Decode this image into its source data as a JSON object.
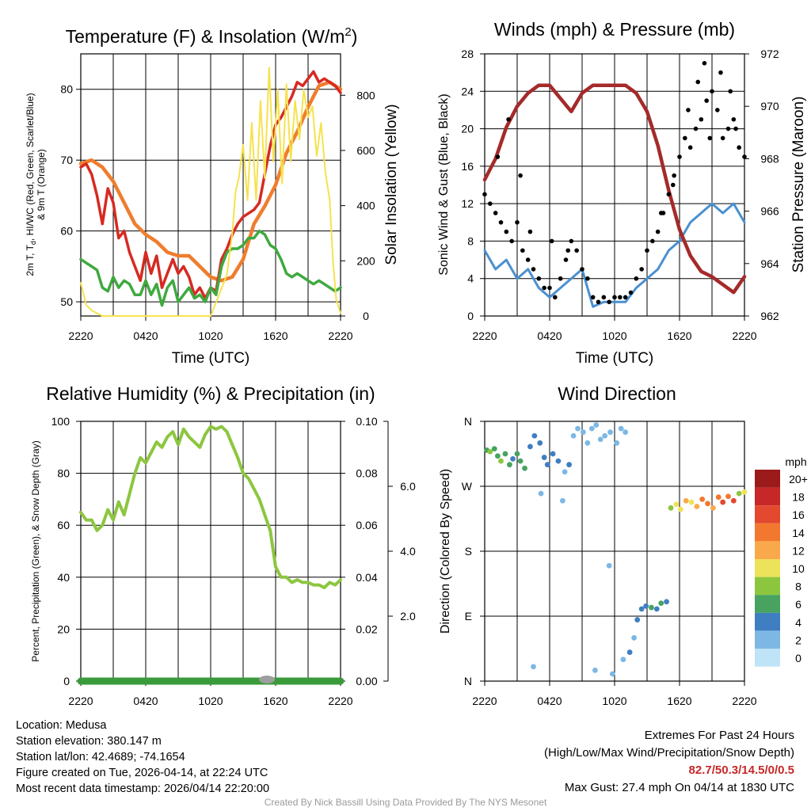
{
  "chart_data": [
    {
      "id": "temp",
      "type": "line",
      "title": "Temperature (F) & Insolation (W/m",
      "title_sup": "2",
      "title_end": ")",
      "xlabel": "Time (UTC)",
      "ylabel_left": [
        "2m T, T",
        "d",
        ", HI/WC (Red, Green, Scarlet/Blue)",
        "& 9m T (Orange)"
      ],
      "ylabel_right": "Solar Insolation (Yellow)",
      "ylim": [
        48,
        85
      ],
      "y2lim": [
        0,
        950
      ],
      "yticks": [
        50,
        60,
        70,
        80
      ],
      "y2ticks": [
        0,
        200,
        400,
        600,
        800
      ],
      "xticks": [
        "2220",
        "0420",
        "1020",
        "1620",
        "2220"
      ],
      "series": [
        {
          "name": "9m T",
          "color": "#ef7d2e",
          "width": 4.5,
          "axis": "left",
          "x": [
            0,
            1,
            2,
            3,
            4,
            5,
            6,
            7,
            8,
            9,
            10,
            11,
            12,
            13,
            14,
            15,
            16,
            17,
            18,
            19,
            20,
            21,
            22,
            23,
            24
          ],
          "values": [
            69.5,
            70,
            69,
            67,
            64,
            61,
            59.5,
            58.5,
            57,
            56.5,
            56.5,
            55,
            53.5,
            53,
            53.5,
            56,
            61,
            63.5,
            66.5,
            71,
            74,
            77.5,
            80.5,
            81,
            80
          ]
        },
        {
          "name": "2m T",
          "color": "#d62a22",
          "width": 3.5,
          "axis": "left",
          "x": [
            0,
            0.5,
            1,
            1.5,
            2,
            2.5,
            3,
            3.5,
            4,
            4.5,
            5,
            5.5,
            6,
            6.5,
            7,
            7.5,
            8,
            8.5,
            9,
            9.5,
            10,
            10.5,
            11,
            11.5,
            12,
            12.5,
            13,
            13.5,
            14,
            14.5,
            15,
            15.5,
            16,
            16.5,
            17,
            17.5,
            18,
            18.5,
            19,
            19.5,
            20,
            20.5,
            21,
            21.5,
            22,
            22.5,
            23,
            23.5,
            24
          ],
          "values": [
            69,
            69.5,
            68,
            65,
            61,
            66,
            64,
            59,
            60,
            57,
            55,
            53,
            57,
            54,
            56.5,
            52,
            54,
            56,
            54,
            55,
            53.5,
            51,
            52,
            50.5,
            52,
            51.5,
            56,
            57.5,
            59.5,
            61,
            62,
            62.5,
            63,
            64,
            68,
            72,
            75,
            76,
            77.5,
            79,
            81,
            80.5,
            81.5,
            82.5,
            81,
            81.5,
            81,
            80.5,
            79.5
          ]
        },
        {
          "name": "HI/WC",
          "color": "#3fa93f",
          "width": 3.5,
          "axis": "left",
          "x": [
            0,
            0.5,
            1,
            1.5,
            2,
            2.5,
            3,
            3.5,
            4,
            4.5,
            5,
            5.5,
            6,
            6.5,
            7,
            7.5,
            8,
            8.5,
            9,
            9.5,
            10,
            10.5,
            11,
            11.5,
            12,
            12.5,
            13,
            13.5,
            14,
            14.5,
            15,
            15.5,
            16,
            16.5,
            17,
            17.5,
            18,
            18.5,
            19,
            19.5,
            20,
            20.5,
            21,
            21.5,
            22,
            22.5,
            23,
            23.5,
            24
          ],
          "values": [
            56,
            55.5,
            55,
            54.5,
            52,
            51.5,
            53.5,
            52,
            53,
            52.5,
            51,
            51,
            53,
            51,
            52.5,
            49.5,
            52,
            53,
            50,
            51,
            52,
            50.5,
            51,
            50,
            52,
            51,
            55,
            57,
            57.5,
            57.5,
            58,
            59,
            59,
            60,
            59.5,
            58,
            57.5,
            56,
            54,
            53.5,
            54,
            53.5,
            53,
            52.5,
            53,
            52.5,
            52,
            51.5,
            52
          ]
        },
        {
          "name": "Insolation",
          "color": "#f6e24e",
          "width": 2,
          "axis": "right",
          "x": [
            0,
            0.5,
            1,
            2,
            3,
            4,
            5,
            6,
            7,
            8,
            9,
            10,
            11,
            12,
            13,
            13.5,
            14,
            14.3,
            14.6,
            15,
            15.4,
            15.8,
            16.2,
            16.6,
            17,
            17.4,
            17.8,
            18.2,
            18.6,
            19,
            19.4,
            19.8,
            20.2,
            20.6,
            21,
            21.4,
            21.8,
            22.2,
            22.6,
            23,
            23.3,
            23.6,
            24
          ],
          "values": [
            120,
            40,
            20,
            0,
            0,
            0,
            0,
            0,
            0,
            0,
            0,
            0,
            0,
            0,
            100,
            150,
            300,
            450,
            500,
            620,
            420,
            700,
            420,
            780,
            500,
            900,
            560,
            820,
            480,
            840,
            560,
            780,
            640,
            820,
            720,
            760,
            580,
            700,
            520,
            420,
            200,
            60,
            10
          ]
        }
      ]
    },
    {
      "id": "wind",
      "type": "line+scatter",
      "title": "Winds (mph) & Pressure (mb)",
      "xlabel": "Time (UTC)",
      "ylabel_left": "Sonic Wind & Gust (Blue, Black)",
      "ylabel_right": "Station Pressure (Maroon)",
      "ylim": [
        0,
        28
      ],
      "y2lim": [
        962,
        972
      ],
      "yticks": [
        0,
        4,
        8,
        12,
        16,
        20,
        24,
        28
      ],
      "y2ticks": [
        962,
        964,
        966,
        968,
        970,
        972
      ],
      "xticks": [
        "2220",
        "0420",
        "1020",
        "1620",
        "2220"
      ],
      "pressure": {
        "color": "#a52a2a",
        "x": [
          0,
          1,
          2,
          3,
          4,
          5,
          6,
          7,
          8,
          9,
          10,
          11,
          12,
          13,
          14,
          15,
          16,
          17,
          18,
          19,
          20,
          21,
          22,
          23,
          24
        ],
        "values": [
          967.2,
          968,
          969.2,
          970,
          970.5,
          970.8,
          970.8,
          970.3,
          969.8,
          970.5,
          970.8,
          970.8,
          970.8,
          970.8,
          970.5,
          969.8,
          968.5,
          966.8,
          965.3,
          964.3,
          963.7,
          963.5,
          963.2,
          962.9,
          963.5
        ]
      },
      "wind": {
        "color": "#4a90d0",
        "x": [
          0,
          1,
          2,
          3,
          4,
          5,
          6,
          7,
          8,
          9,
          10,
          11,
          12,
          13,
          14,
          15,
          16,
          17,
          18,
          19,
          20,
          21,
          22,
          23,
          24
        ],
        "values": [
          7,
          5,
          6,
          4,
          5,
          3,
          2,
          3,
          4,
          5,
          1,
          1.5,
          1.5,
          1.5,
          3,
          4,
          5,
          7,
          8,
          10,
          11,
          12,
          11,
          12,
          10
        ]
      },
      "gust": {
        "color": "#000000",
        "x": [
          0,
          0.5,
          1,
          1.5,
          2,
          2.5,
          3,
          3.5,
          4,
          4.5,
          5,
          5.5,
          6,
          6.5,
          7,
          7.5,
          8,
          8.5,
          9,
          9.5,
          10,
          10.5,
          11,
          11.5,
          12,
          12.5,
          13,
          13.5,
          14,
          14.5,
          15,
          15.5,
          16,
          16.5,
          17,
          17.5,
          18,
          18.5,
          19,
          19.5,
          20,
          20.5,
          21,
          21.5,
          22,
          22.5,
          23,
          23.5,
          24,
          1.2,
          2.2,
          3.3,
          4.2,
          6.2,
          7.7,
          16.3,
          17.4,
          18.8,
          19.7,
          20.3,
          21.8,
          22.7,
          23.2,
          20.8
        ],
        "values": [
          13,
          12,
          11,
          10,
          9,
          8,
          10,
          7,
          6,
          5,
          4,
          3,
          3,
          2,
          4,
          6,
          8,
          7,
          5,
          4,
          2,
          1.5,
          2,
          1.5,
          2,
          2,
          2,
          2.5,
          4,
          5,
          7,
          8,
          9,
          11,
          13,
          15,
          17,
          19,
          18,
          20,
          21,
          23,
          24,
          22,
          19,
          20,
          21,
          18,
          17,
          17,
          21,
          15,
          9,
          8,
          7,
          11,
          14,
          22,
          25,
          27,
          26,
          24,
          20,
          19
        ]
      },
      "marker_size": 4
    },
    {
      "id": "rh",
      "type": "line",
      "title": "Relative Humidity (%) & Precipitation (in)",
      "ylabel_left": "Percent, Precipitation (Green), & Snow Depth (Gray)",
      "ylim": [
        0,
        100
      ],
      "y2lim": [
        0,
        0.1
      ],
      "y3lim": [
        0,
        8
      ],
      "yticks": [
        0,
        20,
        40,
        60,
        80,
        100
      ],
      "y2ticks": [
        "0.00",
        "0.02",
        "0.04",
        "0.06",
        "0.08",
        "0.10"
      ],
      "y3ticks": [
        "2.0",
        "4.0",
        "6.0"
      ],
      "xticks": [
        "2220",
        "0420",
        "1020",
        "1620",
        "2220"
      ],
      "series": [
        {
          "name": "RH",
          "color": "#8cc63f",
          "width": 4,
          "x": [
            0,
            0.5,
            1,
            1.5,
            2,
            2.5,
            3,
            3.5,
            4,
            4.5,
            5,
            5.5,
            6,
            6.5,
            7,
            7.5,
            8,
            8.5,
            9,
            9.5,
            10,
            10.5,
            11,
            11.5,
            12,
            12.5,
            13,
            13.5,
            14,
            14.5,
            15,
            15.5,
            16,
            16.5,
            17,
            17.5,
            18,
            18.5,
            19,
            19.5,
            20,
            20.5,
            21,
            21.5,
            22,
            22.5,
            23,
            23.5,
            24
          ],
          "values": [
            65,
            62,
            62,
            58,
            60,
            66,
            62,
            69,
            64,
            72,
            80,
            86,
            84,
            88,
            92,
            90,
            94,
            96,
            91,
            97,
            94,
            92,
            90,
            95,
            98,
            97,
            98,
            96,
            91,
            86,
            80,
            78,
            74,
            70,
            64,
            58,
            44,
            40,
            40,
            38,
            39,
            38,
            38,
            37,
            37,
            36,
            38,
            37,
            39
          ]
        },
        {
          "name": "Precipitation",
          "color": "#3a9b3a",
          "width": 9,
          "x": [
            0,
            24
          ],
          "values": [
            0,
            0
          ]
        }
      ]
    },
    {
      "id": "dir",
      "type": "scatter",
      "title": "Wind Direction",
      "ylabel_left": "Direction (Colored By Speed)",
      "yticks": [
        "N",
        "E",
        "S",
        "W",
        "N"
      ],
      "xticks": [
        "2220",
        "0420",
        "1020",
        "1620",
        "2220"
      ],
      "legend_title": "mph",
      "legend_labels": [
        "20+",
        "18",
        "16",
        "14",
        "12",
        "10",
        "8",
        "6",
        "4",
        "2",
        "0"
      ],
      "legend_colors": [
        "#9b1a1a",
        "#c62828",
        "#e2492e",
        "#f2782f",
        "#f9a94b",
        "#ede35a",
        "#8cc63f",
        "#47a35f",
        "#3f7fc1",
        "#7db8e4",
        "#bfe3f7"
      ],
      "points": [
        [
          0.2,
          320,
          6
        ],
        [
          0.5,
          318,
          8
        ],
        [
          0.9,
          322,
          5
        ],
        [
          1.2,
          312,
          6
        ],
        [
          1.5,
          305,
          7
        ],
        [
          1.9,
          315,
          5
        ],
        [
          2.3,
          300,
          6
        ],
        [
          2.6,
          308,
          4
        ],
        [
          3,
          315,
          5
        ],
        [
          3.3,
          305,
          6
        ],
        [
          3.7,
          295,
          5
        ],
        [
          4.2,
          325,
          4
        ],
        [
          4.6,
          340,
          3
        ],
        [
          5.1,
          330,
          4
        ],
        [
          5.5,
          310,
          3
        ],
        [
          5.8,
          300,
          4
        ],
        [
          6.3,
          315,
          3
        ],
        [
          6.8,
          305,
          4
        ],
        [
          7.4,
          290,
          2
        ],
        [
          7.8,
          300,
          3
        ],
        [
          8.2,
          340,
          2
        ],
        [
          8.6,
          350,
          1
        ],
        [
          9.1,
          345,
          2
        ],
        [
          9.5,
          330,
          1
        ],
        [
          9.9,
          350,
          1
        ],
        [
          10.3,
          355,
          1
        ],
        [
          10.7,
          335,
          2
        ],
        [
          11.1,
          340,
          1
        ],
        [
          11.6,
          345,
          1
        ],
        [
          12.2,
          330,
          2
        ],
        [
          12.6,
          350,
          1
        ],
        [
          13,
          345,
          2
        ],
        [
          4.5,
          20,
          1
        ],
        [
          10.2,
          15,
          1
        ],
        [
          11.8,
          10,
          1
        ],
        [
          12.8,
          30,
          2
        ],
        [
          13.4,
          40,
          3
        ],
        [
          13.8,
          60,
          2
        ],
        [
          14.1,
          85,
          3
        ],
        [
          14.5,
          100,
          4
        ],
        [
          14.9,
          104,
          4
        ],
        [
          15.4,
          102,
          5
        ],
        [
          15.9,
          100,
          4
        ],
        [
          16.3,
          108,
          6
        ],
        [
          16.8,
          110,
          4
        ],
        [
          17.2,
          240,
          8
        ],
        [
          17.7,
          245,
          10
        ],
        [
          18.1,
          238,
          9
        ],
        [
          18.6,
          250,
          11
        ],
        [
          19.1,
          248,
          10
        ],
        [
          19.6,
          242,
          12
        ],
        [
          20.1,
          252,
          13
        ],
        [
          20.6,
          246,
          14
        ],
        [
          21.1,
          240,
          12
        ],
        [
          21.6,
          255,
          13
        ],
        [
          22,
          248,
          15
        ],
        [
          22.5,
          256,
          14
        ],
        [
          23,
          250,
          16
        ],
        [
          23.5,
          260,
          8
        ],
        [
          24,
          262,
          10
        ],
        [
          5.2,
          260,
          1
        ],
        [
          7.2,
          250,
          1
        ],
        [
          11.5,
          160,
          1
        ]
      ]
    }
  ],
  "info": {
    "location": "Location: Medusa",
    "elevation": "Station elevation: 380.147 m",
    "latlon": "Station lat/lon: 42.4689; -74.1654",
    "created": "Figure created on Tue, 2026-04-14, at 22:24 UTC",
    "recent": "Most recent data timestamp: 2026/04/14 22:20:00"
  },
  "extremes": {
    "title": "Extremes For Past 24 Hours",
    "subtitle": "(High/Low/Max Wind/Precipitation/Snow Depth)",
    "values": "82.7/50.3/14.5/0/0.5",
    "gust": "Max Gust: 27.4 mph On 04/14 at 1830 UTC"
  },
  "credit": "Created By Nick Bassill Using Data Provided By The NYS Mesonet"
}
